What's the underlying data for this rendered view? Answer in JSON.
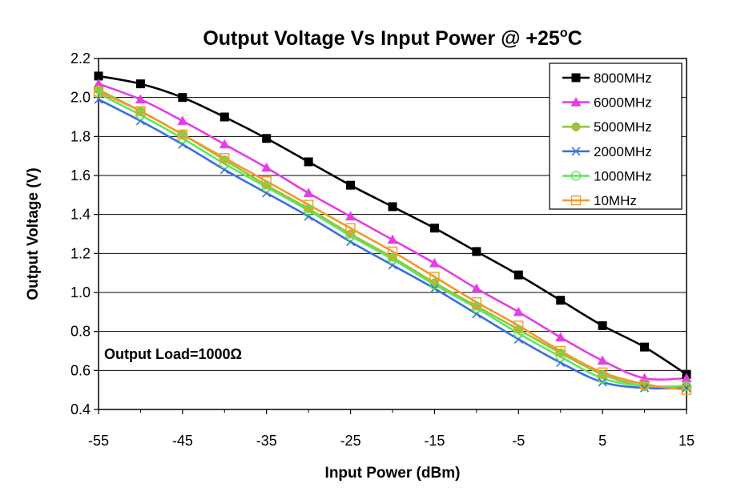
{
  "chart_data": {
    "type": "line",
    "title": "Output Voltage Vs Input Power @ +25",
    "title_superscript": "o",
    "title_suffix": "C",
    "xlabel": "Input Power (dBm)",
    "ylabel": "Output Voltage (V)",
    "xlim": [
      -55,
      15
    ],
    "ylim": [
      0.4,
      2.2
    ],
    "xticks": [
      "-55",
      "-45",
      "-35",
      "-25",
      "-15",
      "-5",
      "5",
      "15"
    ],
    "yticks": [
      "0.4",
      "0.6",
      "0.8",
      "1.0",
      "1.2",
      "1.4",
      "1.6",
      "1.8",
      "2.0",
      "2.2"
    ],
    "grid": true,
    "legend_position": "top-right",
    "annotation": "Output Load=1000Ω",
    "x": [
      -55,
      -50,
      -45,
      -40,
      -35,
      -30,
      -25,
      -20,
      -15,
      -10,
      -5,
      0,
      5,
      10,
      15
    ],
    "series": [
      {
        "name": "8000MHz",
        "color": "#000000",
        "marker": "square-filled",
        "values": [
          2.11,
          2.07,
          2.0,
          1.9,
          1.79,
          1.67,
          1.55,
          1.44,
          1.33,
          1.21,
          1.09,
          0.96,
          0.83,
          0.72,
          0.58
        ]
      },
      {
        "name": "6000MHz",
        "color": "#e53de6",
        "marker": "triangle-filled",
        "values": [
          2.07,
          1.99,
          1.88,
          1.76,
          1.64,
          1.51,
          1.39,
          1.27,
          1.15,
          1.02,
          0.9,
          0.77,
          0.65,
          0.56,
          0.56
        ]
      },
      {
        "name": "5000MHz",
        "color": "#9bc13d",
        "marker": "circle-filled",
        "values": [
          2.04,
          1.93,
          1.81,
          1.68,
          1.55,
          1.43,
          1.3,
          1.18,
          1.05,
          0.93,
          0.81,
          0.69,
          0.58,
          0.52,
          0.52
        ]
      },
      {
        "name": "2000MHz",
        "color": "#3b6fe0",
        "marker": "x",
        "values": [
          1.99,
          1.88,
          1.76,
          1.63,
          1.51,
          1.39,
          1.26,
          1.14,
          1.02,
          0.89,
          0.76,
          0.64,
          0.54,
          0.51,
          0.51
        ]
      },
      {
        "name": "1000MHz",
        "color": "#5ee75e",
        "marker": "circle-open",
        "values": [
          2.02,
          1.91,
          1.79,
          1.66,
          1.54,
          1.42,
          1.29,
          1.17,
          1.04,
          0.92,
          0.79,
          0.67,
          0.56,
          0.52,
          0.52
        ]
      },
      {
        "name": "10MHz",
        "color": "#f09a2a",
        "marker": "square-open",
        "values": [
          2.03,
          1.93,
          1.81,
          1.69,
          1.57,
          1.45,
          1.33,
          1.21,
          1.08,
          0.95,
          0.83,
          0.7,
          0.59,
          0.53,
          0.5
        ]
      }
    ]
  }
}
